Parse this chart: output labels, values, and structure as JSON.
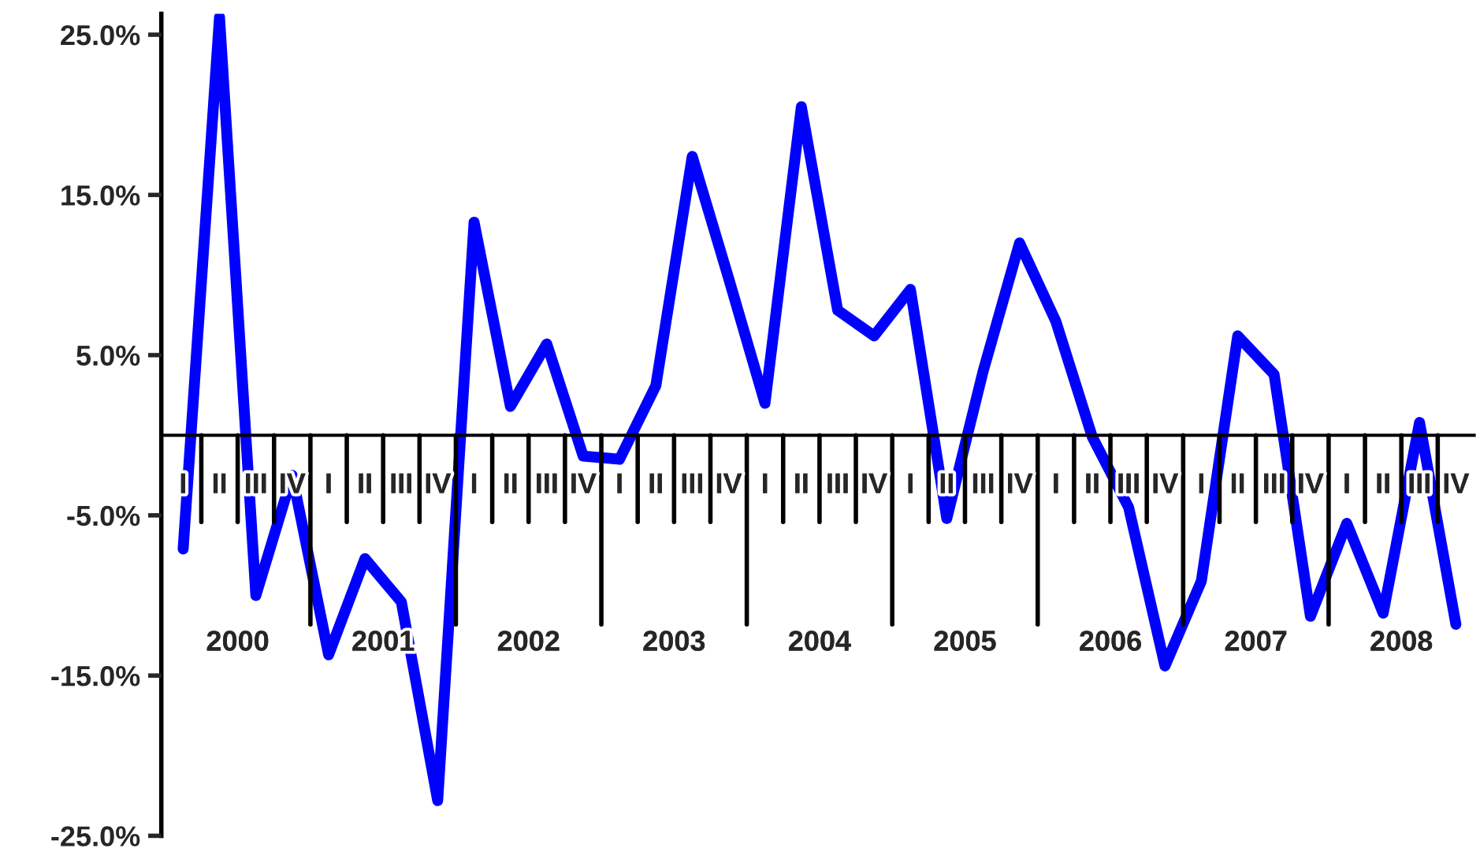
{
  "chart_data": {
    "type": "line",
    "categories": [
      "I",
      "II",
      "III",
      "IV",
      "I",
      "II",
      "III",
      "IV",
      "I",
      "II",
      "III",
      "IV",
      "I",
      "II",
      "III",
      "IV",
      "I",
      "II",
      "III",
      "IV",
      "I",
      "II",
      "III",
      "IV",
      "I",
      "II",
      "III",
      "IV",
      "I",
      "II",
      "III",
      "IV",
      "I",
      "II",
      "III",
      "IV"
    ],
    "series": [
      {
        "color": "#0000ff",
        "values": [
          -7.1,
          26.1,
          -10.0,
          -2.5,
          -13.7,
          -7.7,
          -10.4,
          -22.8,
          13.3,
          1.8,
          5.7,
          -1.3,
          -1.5,
          3.1,
          17.4,
          9.8,
          2.0,
          20.5,
          7.8,
          6.2,
          9.1,
          -5.2,
          4.0,
          12.0,
          7.1,
          -0.1,
          -4.5,
          -14.4,
          -9.1,
          6.2,
          3.8,
          -11.3,
          -5.5,
          -11.1,
          0.8,
          -11.8
        ]
      }
    ],
    "annotations": [
      "2000",
      "2001",
      "2002",
      "2003",
      "2004",
      "2005",
      "2006",
      "2007",
      "2008"
    ],
    "ylim": [
      -25,
      26.3
    ],
    "yticks": [
      {
        "value": 25,
        "label": "25.0%"
      },
      {
        "value": 15,
        "label": "15.0%"
      },
      {
        "value": 5,
        "label": "5.0%"
      },
      {
        "value": -5,
        "label": "-5.0%"
      },
      {
        "value": -15,
        "label": "-15.0%"
      },
      {
        "value": -25,
        "label": "-25.0%"
      }
    ],
    "grid": false,
    "legend": false,
    "marker": "none",
    "line_style": "solid"
  }
}
